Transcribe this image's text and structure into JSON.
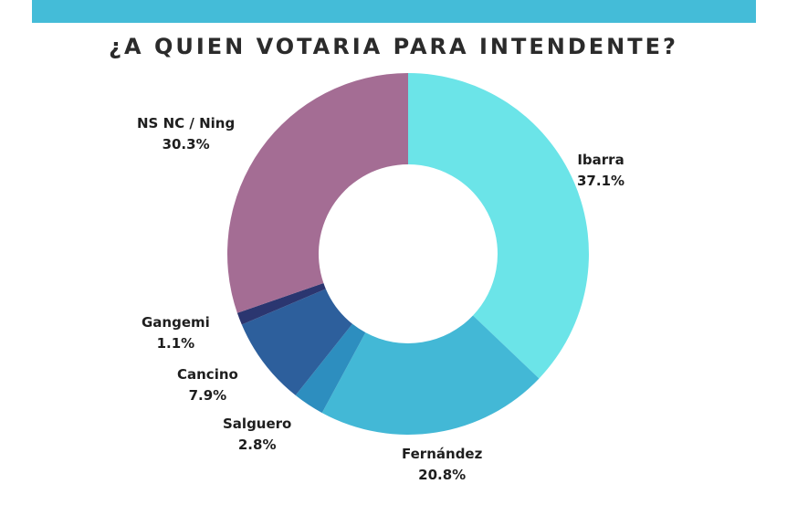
{
  "theme": {
    "bar_color": "#44bcd8"
  },
  "chart_data": {
    "type": "pie",
    "donut": true,
    "title": "¿A QUIEN VOTARIA PARA INTENDENTE?",
    "slices": [
      {
        "name": "Ibarra",
        "value": 37.1,
        "label": "37.1%",
        "color": "#6be4e8"
      },
      {
        "name": "Fernández",
        "value": 20.8,
        "label": "20.8%",
        "color": "#43b8d6"
      },
      {
        "name": "Salguero",
        "value": 2.8,
        "label": "2.8%",
        "color": "#2d8ebf"
      },
      {
        "name": "Cancino",
        "value": 7.9,
        "label": "7.9%",
        "color": "#2d5f9c"
      },
      {
        "name": "Gangemi",
        "value": 1.1,
        "label": "1.1%",
        "color": "#2b3670"
      },
      {
        "name": "NS NC / Ning",
        "value": 30.3,
        "label": "30.3%",
        "color": "#a46d94"
      }
    ]
  }
}
